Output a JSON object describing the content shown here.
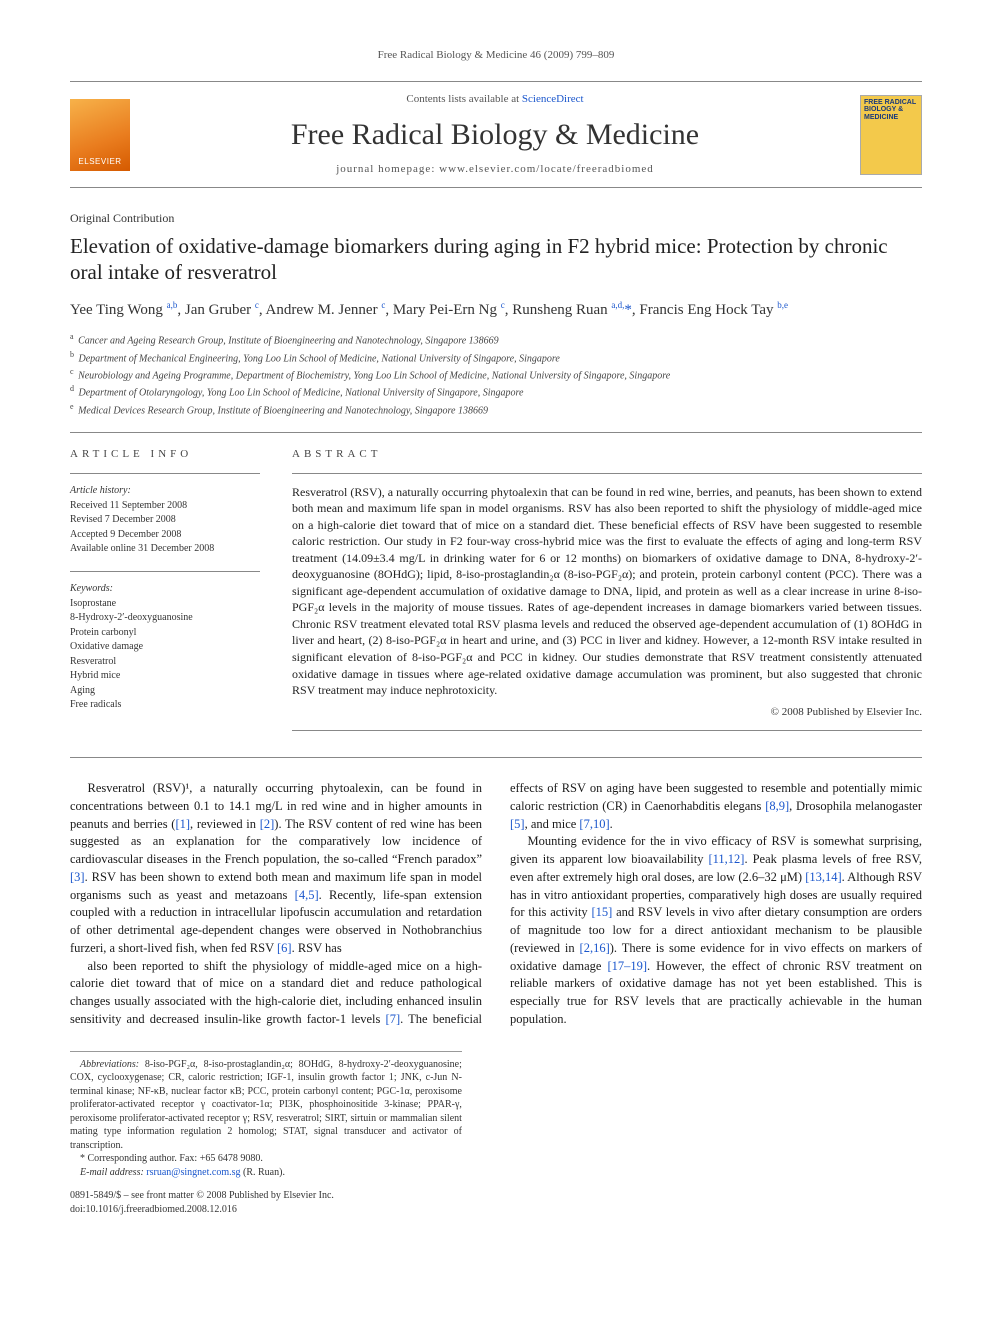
{
  "running_head": "Free Radical Biology & Medicine 46 (2009) 799–809",
  "masthead": {
    "publisher_logo_text": "ELSEVIER",
    "contents_prefix": "Contents lists available at ",
    "contents_link": "ScienceDirect",
    "journal_name": "Free Radical Biology & Medicine",
    "homepage_label": "journal homepage: www.elsevier.com/locate/freeradbiomed",
    "cover_title": "FREE RADICAL BIOLOGY & MEDICINE"
  },
  "article": {
    "type": "Original Contribution",
    "title": "Elevation of oxidative-damage biomarkers during aging in F2 hybrid mice: Protection by chronic oral intake of resveratrol",
    "authors_html": "Yee Ting Wong <sup>a,b</sup>, Jan Gruber <sup>c</sup>, Andrew M. Jenner <sup>c</sup>, Mary Pei-Ern Ng <sup>c</sup>, Runsheng Ruan <sup>a,d,</sup><span class='corr-star'>*</span>, Francis Eng Hock Tay <sup>b,e</sup>",
    "affiliations": [
      {
        "sup": "a",
        "text": "Cancer and Ageing Research Group, Institute of Bioengineering and Nanotechnology, Singapore 138669"
      },
      {
        "sup": "b",
        "text": "Department of Mechanical Engineering, Yong Loo Lin School of Medicine, National University of Singapore, Singapore"
      },
      {
        "sup": "c",
        "text": "Neurobiology and Ageing Programme, Department of Biochemistry, Yong Loo Lin School of Medicine, National University of Singapore, Singapore"
      },
      {
        "sup": "d",
        "text": "Department of Otolaryngology, Yong Loo Lin School of Medicine, National University of Singapore, Singapore"
      },
      {
        "sup": "e",
        "text": "Medical Devices Research Group, Institute of Bioengineering and Nanotechnology, Singapore 138669"
      }
    ]
  },
  "info": {
    "heading": "ARTICLE INFO",
    "history_head": "Article history:",
    "history": [
      "Received 11 September 2008",
      "Revised 7 December 2008",
      "Accepted 9 December 2008",
      "Available online 31 December 2008"
    ],
    "keywords_head": "Keywords:",
    "keywords": [
      "Isoprostane",
      "8-Hydroxy-2′-deoxyguanosine",
      "Protein carbonyl",
      "Oxidative damage",
      "Resveratrol",
      "Hybrid mice",
      "Aging",
      "Free radicals"
    ]
  },
  "abstract": {
    "heading": "ABSTRACT",
    "text": "Resveratrol (RSV), a naturally occurring phytoalexin that can be found in red wine, berries, and peanuts, has been shown to extend both mean and maximum life span in model organisms. RSV has also been reported to shift the physiology of middle-aged mice on a high-calorie diet toward that of mice on a standard diet. These beneficial effects of RSV have been suggested to resemble caloric restriction. Our study in F2 four-way cross-hybrid mice was the first to evaluate the effects of aging and long-term RSV treatment (14.09±3.4 mg/L in drinking water for 6 or 12 months) on biomarkers of oxidative damage to DNA, 8-hydroxy-2′-deoxyguanosine (8OHdG); lipid, 8-iso-prostaglandin₂α (8-iso-PGF₂α); and protein, protein carbonyl content (PCC). There was a significant age-dependent accumulation of oxidative damage to DNA, lipid, and protein as well as a clear increase in urine 8-iso-PGF₂α levels in the majority of mouse tissues. Rates of age-dependent increases in damage biomarkers varied between tissues. Chronic RSV treatment elevated total RSV plasma levels and reduced the observed age-dependent accumulation of (1) 8OHdG in liver and heart, (2) 8-iso-PGF₂α in heart and urine, and (3) PCC in liver and kidney. However, a 12-month RSV intake resulted in significant elevation of 8-iso-PGF₂α and PCC in kidney. Our studies demonstrate that RSV treatment consistently attenuated oxidative damage in tissues where age-related oxidative damage accumulation was prominent, but also suggested that chronic RSV treatment may induce nephrotoxicity.",
    "copyright": "© 2008 Published by Elsevier Inc."
  },
  "body": {
    "p1": "Resveratrol (RSV)¹, a naturally occurring phytoalexin, can be found in concentrations between 0.1 to 14.1 mg/L in red wine and in higher amounts in peanuts and berries ([1], reviewed in [2]). The RSV content of red wine has been suggested as an explanation for the comparatively low incidence of cardiovascular diseases in the French population, the so-called “French paradox” [3]. RSV has been shown to extend both mean and maximum life span in model organisms such as yeast and metazoans [4,5]. Recently, life-span extension coupled with a reduction in intracellular lipofuscin accumulation and retardation of other detrimental age-dependent changes were observed in Nothobranchius furzeri, a short-lived fish, when fed RSV [6]. RSV has",
    "p2": "also been reported to shift the physiology of middle-aged mice on a high-calorie diet toward that of mice on a standard diet and reduce pathological changes usually associated with the high-calorie diet, including enhanced insulin sensitivity and decreased insulin-like growth factor-1 levels [7]. The beneficial effects of RSV on aging have been suggested to resemble and potentially mimic caloric restriction (CR) in Caenorhabditis elegans [8,9], Drosophila melanogaster [5], and mice [7,10].",
    "p3": "Mounting evidence for the in vivo efficacy of RSV is somewhat surprising, given its apparent low bioavailability [11,12]. Peak plasma levels of free RSV, even after extremely high oral doses, are low (2.6–32 μM) [13,14]. Although RSV has in vitro antioxidant properties, comparatively high doses are usually required for this activity [15] and RSV levels in vivo after dietary consumption are orders of magnitude too low for a direct antioxidant mechanism to be plausible (reviewed in [2,16]). There is some evidence for in vivo effects on markers of oxidative damage [17–19]. However, the effect of chronic RSV treatment on reliable markers of oxidative damage has not yet been established. This is especially true for RSV levels that are practically achievable in the human population."
  },
  "footnotes": {
    "abbrev_label": "Abbreviations:",
    "abbrev_text": " 8-iso-PGF₂α, 8-iso-prostaglandin₂α; 8OHdG, 8-hydroxy-2′-deoxyguanosine; COX, cyclooxygenase; CR, caloric restriction; IGF-1, insulin growth factor 1; JNK, c-Jun N-terminal kinase; NF-κB, nuclear factor κB; PCC, protein carbonyl content; PGC-1α, peroxisome proliferator-activated receptor γ coactivator-1α; PI3K, phosphoinositide 3-kinase; PPAR-γ, peroxisome proliferator-activated receptor γ; RSV, resveratrol; SIRT, sirtuin or mammalian silent mating type information regulation 2 homolog; STAT, signal transducer and activator of transcription.",
    "corr_label": "* Corresponding author. Fax: +65 6478 9080.",
    "email_label": "E-mail address:",
    "email": "rsruan@singnet.com.sg",
    "email_suffix": "(R. Ruan)."
  },
  "doi": {
    "front_matter": "0891-5849/$ – see front matter © 2008 Published by Elsevier Inc.",
    "doi": "doi:10.1016/j.freeradbiomed.2008.12.016"
  },
  "colors": {
    "link": "#1a56cc",
    "rule": "#888888",
    "logo_grad_a": "#f7b24a",
    "logo_grad_b": "#d55a00",
    "cover_bg": "#f3c94b"
  }
}
